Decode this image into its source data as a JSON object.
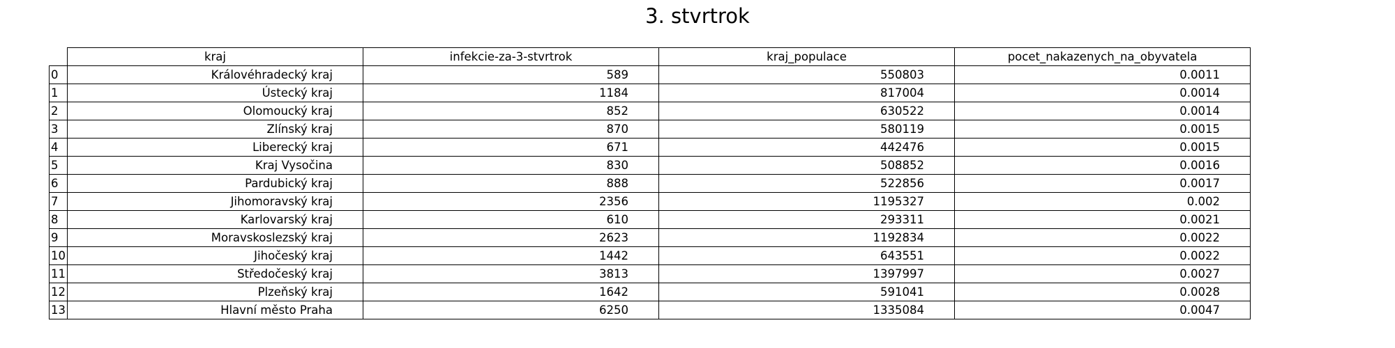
{
  "chart_data": {
    "type": "table",
    "title": "3. stvrtrok",
    "columns": [
      "kraj",
      "infekcie-za-3-stvrtrok",
      "kraj_populace",
      "pocet_nakazenych_na_obyvatela"
    ],
    "rows": [
      {
        "index": "0",
        "cells": [
          "Královéhradecký kraj",
          "589",
          "550803",
          "0.0011"
        ]
      },
      {
        "index": "1",
        "cells": [
          "Ústecký kraj",
          "1184",
          "817004",
          "0.0014"
        ]
      },
      {
        "index": "2",
        "cells": [
          "Olomoucký kraj",
          "852",
          "630522",
          "0.0014"
        ]
      },
      {
        "index": "3",
        "cells": [
          "Zlínský kraj",
          "870",
          "580119",
          "0.0015"
        ]
      },
      {
        "index": "4",
        "cells": [
          "Liberecký kraj",
          "671",
          "442476",
          "0.0015"
        ]
      },
      {
        "index": "5",
        "cells": [
          "Kraj Vysočina",
          "830",
          "508852",
          "0.0016"
        ]
      },
      {
        "index": "6",
        "cells": [
          "Pardubický kraj",
          "888",
          "522856",
          "0.0017"
        ]
      },
      {
        "index": "7",
        "cells": [
          "Jihomoravský kraj",
          "2356",
          "1195327",
          "0.002"
        ]
      },
      {
        "index": "8",
        "cells": [
          "Karlovarský kraj",
          "610",
          "293311",
          "0.0021"
        ]
      },
      {
        "index": "9",
        "cells": [
          "Moravskoslezský kraj",
          "2623",
          "1192834",
          "0.0022"
        ]
      },
      {
        "index": "10",
        "cells": [
          "Jihočeský kraj",
          "1442",
          "643551",
          "0.0022"
        ]
      },
      {
        "index": "11",
        "cells": [
          "Středočeský kraj",
          "3813",
          "1397997",
          "0.0027"
        ]
      },
      {
        "index": "12",
        "cells": [
          "Plzeňský kraj",
          "1642",
          "591041",
          "0.0028"
        ]
      },
      {
        "index": "13",
        "cells": [
          "Hlavní město Praha",
          "6250",
          "1335084",
          "0.0047"
        ]
      }
    ]
  }
}
